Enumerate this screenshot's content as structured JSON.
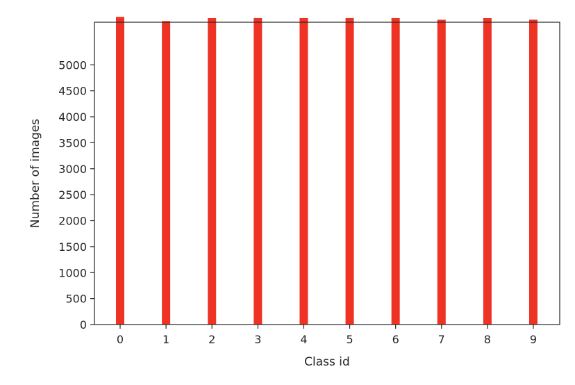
{
  "chart_data": {
    "type": "bar",
    "title": "",
    "xlabel": "Class id",
    "ylabel": "Number of images",
    "categories": [
      "0",
      "1",
      "2",
      "3",
      "4",
      "5",
      "6",
      "7",
      "8",
      "9"
    ],
    "values": [
      5923,
      5842,
      5900,
      5901,
      5901,
      5901,
      5901,
      5868,
      5900,
      5869
    ],
    "ylim": [
      0,
      5820
    ],
    "yticks": [
      0,
      500,
      1000,
      1500,
      2000,
      2500,
      3000,
      3500,
      4000,
      4500,
      5000
    ],
    "ytick_labels": [
      "0",
      "500",
      "1000",
      "1500",
      "2000",
      "2500",
      "3000",
      "3500",
      "4000",
      "4500",
      "5000"
    ],
    "grid": false,
    "legend": "none",
    "bar_color": "#ee3224",
    "axis_color": "#262626"
  }
}
